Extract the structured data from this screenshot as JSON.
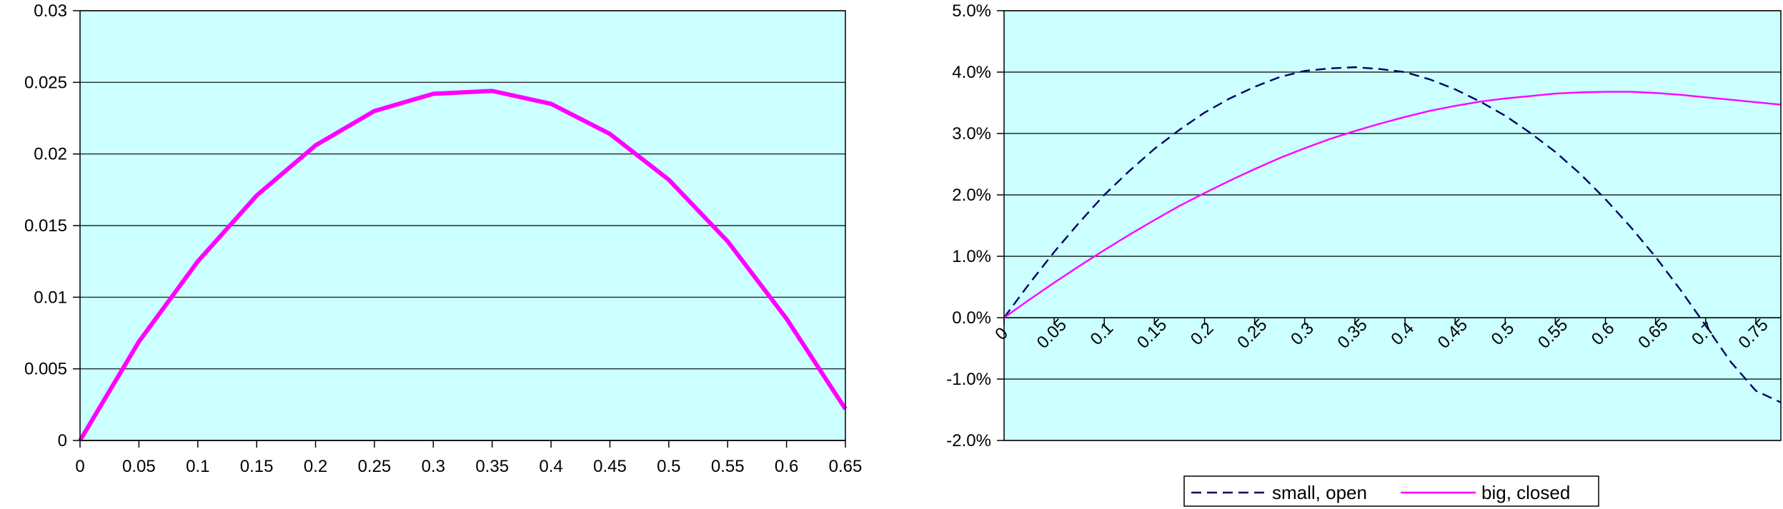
{
  "chart_data": [
    {
      "type": "line",
      "title": "",
      "xlabel": "",
      "ylabel": "",
      "x": [
        0,
        0.05,
        0.1,
        0.15,
        0.2,
        0.25,
        0.3,
        0.35,
        0.4,
        0.45,
        0.5,
        0.55,
        0.6,
        0.65
      ],
      "xticks": [
        "0",
        "0.05",
        "0.1",
        "0.15",
        "0.2",
        "0.25",
        "0.3",
        "0.35",
        "0.4",
        "0.45",
        "0.5",
        "0.55",
        "0.6",
        "0.65"
      ],
      "yticks": [
        "0",
        "0.005",
        "0.01",
        "0.015",
        "0.02",
        "0.025",
        "0.03"
      ],
      "xlim": [
        0,
        0.65
      ],
      "ylim": [
        0,
        0.03
      ],
      "grid": true,
      "legend": false,
      "plot_background": "#ccffff",
      "series": [
        {
          "values": [
            0,
            0.0069,
            0.0125,
            0.0171,
            0.0206,
            0.023,
            0.0242,
            0.0244,
            0.0235,
            0.0214,
            0.0182,
            0.0139,
            0.0085,
            0.0022
          ],
          "color": "#ff00ff",
          "style": "solid"
        }
      ]
    },
    {
      "type": "line",
      "title": "",
      "xlabel": "",
      "ylabel": "",
      "x": [
        0,
        0.025,
        0.05,
        0.075,
        0.1,
        0.125,
        0.15,
        0.175,
        0.2,
        0.225,
        0.25,
        0.275,
        0.3,
        0.325,
        0.35,
        0.375,
        0.4,
        0.425,
        0.45,
        0.475,
        0.5,
        0.525,
        0.55,
        0.575,
        0.6,
        0.625,
        0.65,
        0.675,
        0.7,
        0.725,
        0.75,
        0.775
      ],
      "xticks": [
        "0",
        "0.05",
        "0.1",
        "0.15",
        "0.2",
        "0.25",
        "0.3",
        "0.35",
        "0.4",
        "0.45",
        "0.5",
        "0.55",
        "0.6",
        "0.65",
        "0.7",
        "0.75"
      ],
      "yticks": [
        "-2.0%",
        "-1.0%",
        "0.0%",
        "1.0%",
        "2.0%",
        "3.0%",
        "4.0%",
        "5.0%"
      ],
      "xlim": [
        0,
        0.775
      ],
      "ylim": [
        -0.02,
        0.05
      ],
      "grid": true,
      "legend": "bottom",
      "plot_background": "#ccffff",
      "series": [
        {
          "name": "small, open",
          "color": "#000066",
          "style": "dashed",
          "values": [
            0,
            0.0055,
            0.0107,
            0.0155,
            0.02,
            0.0239,
            0.0275,
            0.0306,
            0.0334,
            0.0357,
            0.0376,
            0.0392,
            0.0402,
            0.0406,
            0.0408,
            0.0405,
            0.04,
            0.0388,
            0.0372,
            0.0352,
            0.0329,
            0.0301,
            0.027,
            0.0234,
            0.0193,
            0.0148,
            0.0099,
            0.0045,
            -0.0013,
            -0.0072,
            -0.0119,
            -0.0138
          ]
        },
        {
          "name": "big, closed",
          "color": "#ff00ff",
          "style": "solid",
          "values": [
            0,
            0.0029,
            0.0057,
            0.0084,
            0.011,
            0.0135,
            0.0159,
            0.0182,
            0.0203,
            0.0223,
            0.0242,
            0.026,
            0.0276,
            0.0291,
            0.0304,
            0.0316,
            0.0327,
            0.0337,
            0.0345,
            0.0352,
            0.0357,
            0.0361,
            0.0365,
            0.0367,
            0.0368,
            0.0368,
            0.0366,
            0.0363,
            0.0359,
            0.0355,
            0.0351,
            0.0347
          ]
        }
      ]
    }
  ]
}
